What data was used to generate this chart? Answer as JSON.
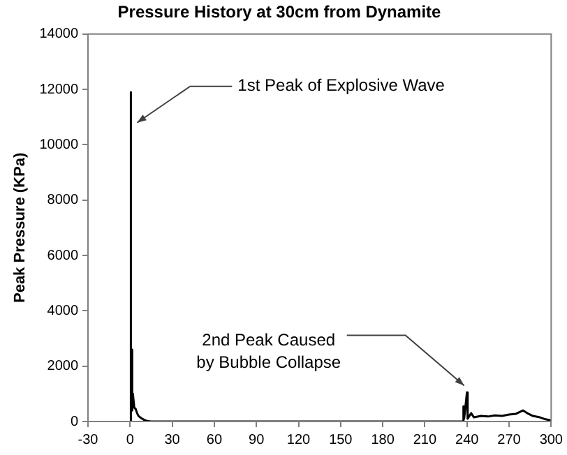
{
  "chart_data": {
    "type": "line",
    "title": "Pressure History at 30cm from Dynamite",
    "ylabel": "Peak Pressure (KPa)",
    "x": [
      0,
      0.3,
      0.8,
      1,
      1.5,
      2,
      3,
      4,
      5,
      6,
      8,
      10,
      12,
      15,
      237,
      237.5,
      238,
      240,
      240.5,
      243,
      245,
      250,
      255,
      260,
      265,
      270,
      275,
      280,
      283,
      287,
      292,
      296,
      300
    ],
    "series": [
      {
        "color": "#000000",
        "values": [
          0,
          11900,
          300,
          2600,
          400,
          1000,
          500,
          450,
          300,
          200,
          120,
          60,
          20,
          0,
          0,
          550,
          100,
          1050,
          100,
          300,
          150,
          200,
          180,
          220,
          200,
          250,
          280,
          400,
          300,
          200,
          150,
          80,
          40
        ]
      }
    ],
    "xlim": [
      -30,
      300
    ],
    "xticks": [
      -30,
      0,
      30,
      60,
      90,
      120,
      150,
      180,
      210,
      240,
      270,
      300
    ],
    "ylim": [
      0,
      14000
    ],
    "yticks": [
      0,
      2000,
      4000,
      6000,
      8000,
      10000,
      12000,
      14000
    ],
    "grid": false,
    "legend": false,
    "marker": "none",
    "line_style": "solid",
    "annotations": [
      {
        "text": "1st Peak of Explosive Wave",
        "x": 5,
        "y": 10800
      },
      {
        "text": "2nd Peak Caused\nby Bubble Collapse",
        "x": 238,
        "y": 1300
      }
    ]
  }
}
